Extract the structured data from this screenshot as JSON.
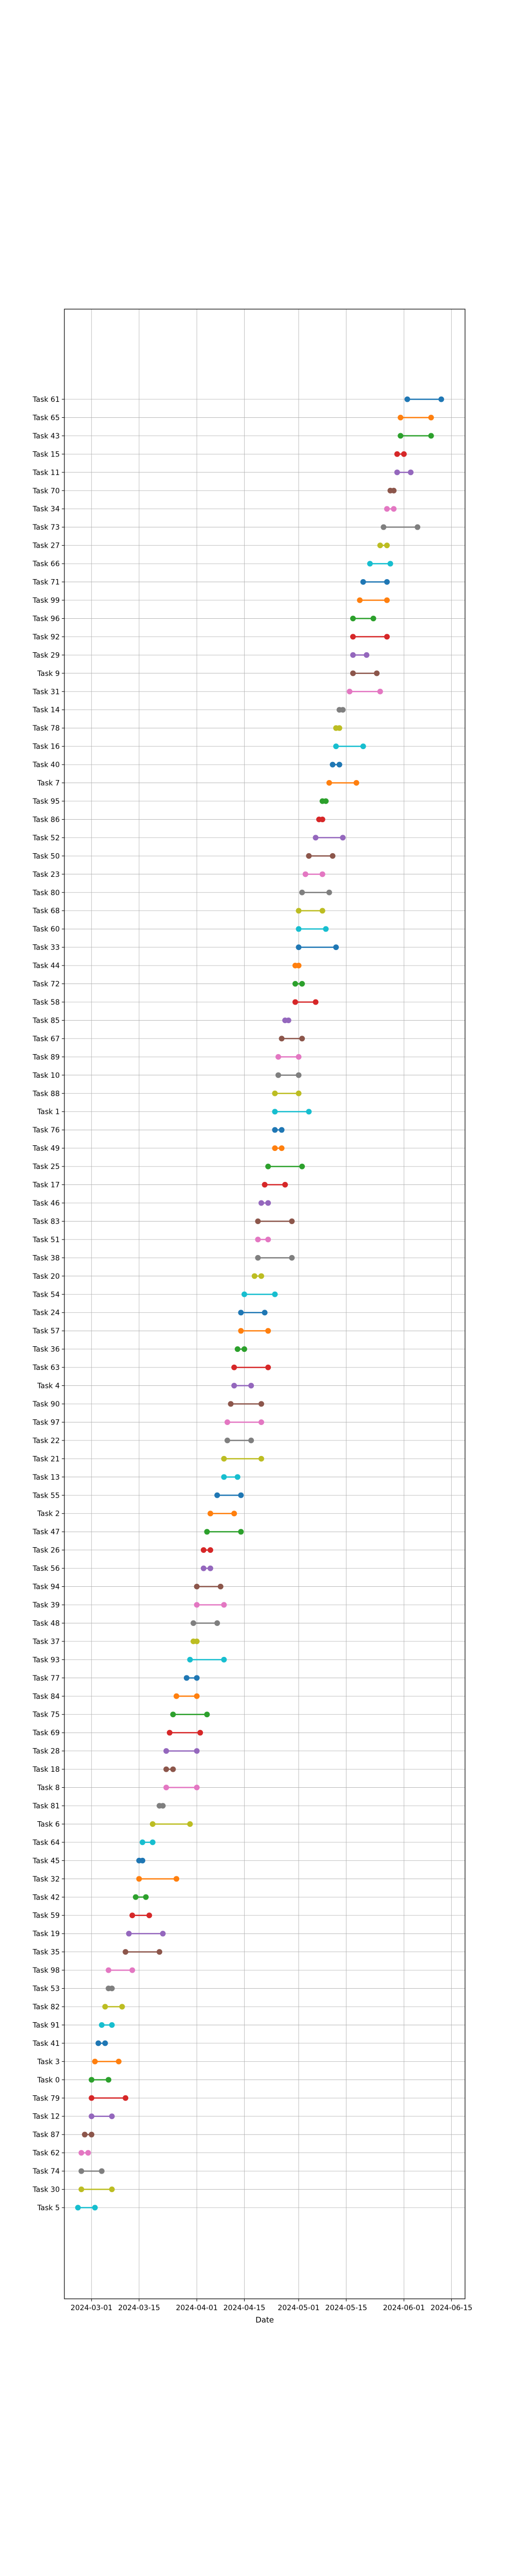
{
  "chart_data": {
    "type": "range-dot",
    "xlabel": "Date",
    "ylabel": "",
    "title": "",
    "grid": true,
    "legend": "none",
    "xlim": [
      "2024-02-22",
      "2024-06-19"
    ],
    "xticks": [
      "2024-03-01",
      "2024-03-15",
      "2024-04-01",
      "2024-04-15",
      "2024-05-01",
      "2024-05-15",
      "2024-06-01",
      "2024-06-15"
    ],
    "palette": [
      "#1f77b4",
      "#ff7f0e",
      "#2ca02c",
      "#d62728",
      "#9467bd",
      "#8c564b",
      "#e377c2",
      "#7f7f7f",
      "#bcbd22",
      "#17becf"
    ],
    "tasks": [
      {
        "label": "Task 61",
        "start": "2024-06-02",
        "end": "2024-06-12"
      },
      {
        "label": "Task 65",
        "start": "2024-05-31",
        "end": "2024-06-09"
      },
      {
        "label": "Task 43",
        "start": "2024-05-31",
        "end": "2024-06-09"
      },
      {
        "label": "Task 15",
        "start": "2024-05-30",
        "end": "2024-06-01"
      },
      {
        "label": "Task 11",
        "start": "2024-05-30",
        "end": "2024-06-03"
      },
      {
        "label": "Task 70",
        "start": "2024-05-28",
        "end": "2024-05-29"
      },
      {
        "label": "Task 34",
        "start": "2024-05-27",
        "end": "2024-05-29"
      },
      {
        "label": "Task 73",
        "start": "2024-05-26",
        "end": "2024-06-05"
      },
      {
        "label": "Task 27",
        "start": "2024-05-25",
        "end": "2024-05-27"
      },
      {
        "label": "Task 66",
        "start": "2024-05-22",
        "end": "2024-05-28"
      },
      {
        "label": "Task 71",
        "start": "2024-05-20",
        "end": "2024-05-27"
      },
      {
        "label": "Task 99",
        "start": "2024-05-19",
        "end": "2024-05-27"
      },
      {
        "label": "Task 96",
        "start": "2024-05-17",
        "end": "2024-05-23"
      },
      {
        "label": "Task 92",
        "start": "2024-05-17",
        "end": "2024-05-27"
      },
      {
        "label": "Task 29",
        "start": "2024-05-17",
        "end": "2024-05-21"
      },
      {
        "label": "Task 9",
        "start": "2024-05-17",
        "end": "2024-05-24"
      },
      {
        "label": "Task 31",
        "start": "2024-05-16",
        "end": "2024-05-25"
      },
      {
        "label": "Task 14",
        "start": "2024-05-13",
        "end": "2024-05-14"
      },
      {
        "label": "Task 78",
        "start": "2024-05-12",
        "end": "2024-05-13"
      },
      {
        "label": "Task 16",
        "start": "2024-05-12",
        "end": "2024-05-20"
      },
      {
        "label": "Task 40",
        "start": "2024-05-11",
        "end": "2024-05-13"
      },
      {
        "label": "Task 7",
        "start": "2024-05-10",
        "end": "2024-05-18"
      },
      {
        "label": "Task 95",
        "start": "2024-05-08",
        "end": "2024-05-09"
      },
      {
        "label": "Task 86",
        "start": "2024-05-07",
        "end": "2024-05-08"
      },
      {
        "label": "Task 52",
        "start": "2024-05-06",
        "end": "2024-05-14"
      },
      {
        "label": "Task 50",
        "start": "2024-05-04",
        "end": "2024-05-11"
      },
      {
        "label": "Task 23",
        "start": "2024-05-03",
        "end": "2024-05-08"
      },
      {
        "label": "Task 80",
        "start": "2024-05-02",
        "end": "2024-05-10"
      },
      {
        "label": "Task 68",
        "start": "2024-05-01",
        "end": "2024-05-08"
      },
      {
        "label": "Task 60",
        "start": "2024-05-01",
        "end": "2024-05-09"
      },
      {
        "label": "Task 33",
        "start": "2024-05-01",
        "end": "2024-05-12"
      },
      {
        "label": "Task 44",
        "start": "2024-04-30",
        "end": "2024-05-01"
      },
      {
        "label": "Task 72",
        "start": "2024-04-30",
        "end": "2024-05-02"
      },
      {
        "label": "Task 58",
        "start": "2024-04-30",
        "end": "2024-05-06"
      },
      {
        "label": "Task 85",
        "start": "2024-04-27",
        "end": "2024-04-28"
      },
      {
        "label": "Task 67",
        "start": "2024-04-26",
        "end": "2024-05-02"
      },
      {
        "label": "Task 89",
        "start": "2024-04-25",
        "end": "2024-05-01"
      },
      {
        "label": "Task 10",
        "start": "2024-04-25",
        "end": "2024-05-01"
      },
      {
        "label": "Task 88",
        "start": "2024-04-24",
        "end": "2024-05-01"
      },
      {
        "label": "Task 1",
        "start": "2024-04-24",
        "end": "2024-05-04"
      },
      {
        "label": "Task 76",
        "start": "2024-04-24",
        "end": "2024-04-26"
      },
      {
        "label": "Task 49",
        "start": "2024-04-24",
        "end": "2024-04-26"
      },
      {
        "label": "Task 25",
        "start": "2024-04-22",
        "end": "2024-05-02"
      },
      {
        "label": "Task 17",
        "start": "2024-04-21",
        "end": "2024-04-27"
      },
      {
        "label": "Task 46",
        "start": "2024-04-20",
        "end": "2024-04-22"
      },
      {
        "label": "Task 83",
        "start": "2024-04-19",
        "end": "2024-04-29"
      },
      {
        "label": "Task 51",
        "start": "2024-04-19",
        "end": "2024-04-22"
      },
      {
        "label": "Task 38",
        "start": "2024-04-19",
        "end": "2024-04-29"
      },
      {
        "label": "Task 20",
        "start": "2024-04-18",
        "end": "2024-04-20"
      },
      {
        "label": "Task 54",
        "start": "2024-04-15",
        "end": "2024-04-24"
      },
      {
        "label": "Task 24",
        "start": "2024-04-14",
        "end": "2024-04-21"
      },
      {
        "label": "Task 57",
        "start": "2024-04-14",
        "end": "2024-04-22"
      },
      {
        "label": "Task 36",
        "start": "2024-04-13",
        "end": "2024-04-15"
      },
      {
        "label": "Task 63",
        "start": "2024-04-12",
        "end": "2024-04-22"
      },
      {
        "label": "Task 4",
        "start": "2024-04-12",
        "end": "2024-04-17"
      },
      {
        "label": "Task 90",
        "start": "2024-04-11",
        "end": "2024-04-20"
      },
      {
        "label": "Task 97",
        "start": "2024-04-10",
        "end": "2024-04-20"
      },
      {
        "label": "Task 22",
        "start": "2024-04-10",
        "end": "2024-04-17"
      },
      {
        "label": "Task 21",
        "start": "2024-04-09",
        "end": "2024-04-20"
      },
      {
        "label": "Task 13",
        "start": "2024-04-09",
        "end": "2024-04-13"
      },
      {
        "label": "Task 55",
        "start": "2024-04-07",
        "end": "2024-04-14"
      },
      {
        "label": "Task 2",
        "start": "2024-04-05",
        "end": "2024-04-12"
      },
      {
        "label": "Task 47",
        "start": "2024-04-04",
        "end": "2024-04-14"
      },
      {
        "label": "Task 26",
        "start": "2024-04-03",
        "end": "2024-04-05"
      },
      {
        "label": "Task 56",
        "start": "2024-04-03",
        "end": "2024-04-05"
      },
      {
        "label": "Task 94",
        "start": "2024-04-01",
        "end": "2024-04-08"
      },
      {
        "label": "Task 39",
        "start": "2024-04-01",
        "end": "2024-04-09"
      },
      {
        "label": "Task 48",
        "start": "2024-03-31",
        "end": "2024-04-07"
      },
      {
        "label": "Task 37",
        "start": "2024-03-31",
        "end": "2024-04-01"
      },
      {
        "label": "Task 93",
        "start": "2024-03-30",
        "end": "2024-04-09"
      },
      {
        "label": "Task 77",
        "start": "2024-03-29",
        "end": "2024-04-01"
      },
      {
        "label": "Task 84",
        "start": "2024-03-26",
        "end": "2024-04-01"
      },
      {
        "label": "Task 75",
        "start": "2024-03-25",
        "end": "2024-04-04"
      },
      {
        "label": "Task 69",
        "start": "2024-03-24",
        "end": "2024-04-02"
      },
      {
        "label": "Task 28",
        "start": "2024-03-23",
        "end": "2024-04-01"
      },
      {
        "label": "Task 18",
        "start": "2024-03-23",
        "end": "2024-03-25"
      },
      {
        "label": "Task 8",
        "start": "2024-03-23",
        "end": "2024-04-01"
      },
      {
        "label": "Task 81",
        "start": "2024-03-21",
        "end": "2024-03-22"
      },
      {
        "label": "Task 6",
        "start": "2024-03-19",
        "end": "2024-03-30"
      },
      {
        "label": "Task 64",
        "start": "2024-03-16",
        "end": "2024-03-19"
      },
      {
        "label": "Task 45",
        "start": "2024-03-15",
        "end": "2024-03-16"
      },
      {
        "label": "Task 32",
        "start": "2024-03-15",
        "end": "2024-03-26"
      },
      {
        "label": "Task 42",
        "start": "2024-03-14",
        "end": "2024-03-17"
      },
      {
        "label": "Task 59",
        "start": "2024-03-13",
        "end": "2024-03-18"
      },
      {
        "label": "Task 19",
        "start": "2024-03-12",
        "end": "2024-03-22"
      },
      {
        "label": "Task 35",
        "start": "2024-03-11",
        "end": "2024-03-21"
      },
      {
        "label": "Task 98",
        "start": "2024-03-06",
        "end": "2024-03-13"
      },
      {
        "label": "Task 53",
        "start": "2024-03-06",
        "end": "2024-03-07"
      },
      {
        "label": "Task 82",
        "start": "2024-03-05",
        "end": "2024-03-10"
      },
      {
        "label": "Task 91",
        "start": "2024-03-04",
        "end": "2024-03-07"
      },
      {
        "label": "Task 41",
        "start": "2024-03-03",
        "end": "2024-03-05"
      },
      {
        "label": "Task 3",
        "start": "2024-03-02",
        "end": "2024-03-09"
      },
      {
        "label": "Task 0",
        "start": "2024-03-01",
        "end": "2024-03-06"
      },
      {
        "label": "Task 79",
        "start": "2024-03-01",
        "end": "2024-03-11"
      },
      {
        "label": "Task 12",
        "start": "2024-03-01",
        "end": "2024-03-07"
      },
      {
        "label": "Task 87",
        "start": "2024-02-28",
        "end": "2024-03-01"
      },
      {
        "label": "Task 62",
        "start": "2024-02-27",
        "end": "2024-02-29"
      },
      {
        "label": "Task 74",
        "start": "2024-02-27",
        "end": "2024-03-04"
      },
      {
        "label": "Task 30",
        "start": "2024-02-27",
        "end": "2024-03-07"
      },
      {
        "label": "Task 5",
        "start": "2024-02-26",
        "end": "2024-03-02"
      }
    ]
  }
}
